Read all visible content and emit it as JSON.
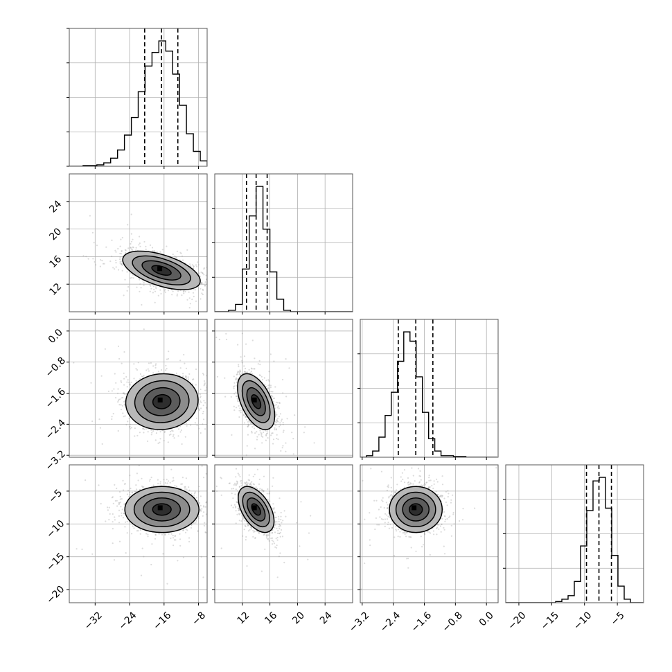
{
  "chart_data": {
    "type": "corner",
    "title": "",
    "parameters": [
      "",
      "",
      "",
      ""
    ],
    "grid": true,
    "colors": {
      "hist": "#000000",
      "samples": "#9a9a9a",
      "frame": "#555555",
      "grid": "#b0b0b0"
    },
    "axis_ranges": [
      [
        -38,
        -6
      ],
      [
        8,
        28
      ],
      [
        -3.25,
        0.3
      ],
      [
        -22,
        -1
      ]
    ],
    "ticks": [
      [
        "-32",
        "-24",
        "-16",
        "-8"
      ],
      [
        "12",
        "16",
        "20",
        "24"
      ],
      [
        "-3.2",
        "-2.4",
        "-1.6",
        "-0.8",
        "0.0"
      ],
      [
        "-20",
        "-15",
        "-10",
        "-5"
      ]
    ],
    "tick_values": [
      [
        -32,
        -24,
        -16,
        -8
      ],
      [
        12,
        16,
        20,
        24
      ],
      [
        -3.2,
        -2.4,
        -1.6,
        -0.8,
        0.0
      ],
      [
        -20,
        -15,
        -10,
        -5
      ]
    ],
    "quantiles": [
      [
        -20.5,
        -16.6,
        -12.8
      ],
      [
        12.6,
        14.0,
        15.6
      ],
      [
        -2.27,
        -1.82,
        -1.38
      ],
      [
        -9.7,
        -7.8,
        -5.9
      ]
    ],
    "histograms": [
      {
        "edges_start": -38,
        "bin_width": 1.6,
        "counts": [
          0,
          0,
          1,
          1,
          2,
          5,
          12,
          24,
          46,
          72,
          110,
          148,
          168,
          185,
          170,
          136,
          90,
          48,
          22,
          8,
          2
        ]
      },
      {
        "edges_start": 8,
        "bin_width": 1,
        "counts": [
          0,
          0,
          2,
          10,
          58,
          130,
          170,
          112,
          54,
          17,
          2,
          0,
          0,
          0,
          0,
          0,
          0,
          0,
          0,
          0
        ]
      },
      {
        "edges_start": -3.25,
        "bin_width": 0.16,
        "counts": [
          0,
          2,
          8,
          26,
          54,
          84,
          124,
          162,
          150,
          104,
          58,
          24,
          8,
          2,
          2,
          1,
          1,
          0,
          0,
          0,
          0,
          0
        ]
      },
      {
        "edges_start": -22,
        "bin_width": 0.95,
        "counts": [
          0,
          0,
          0,
          0,
          0,
          0,
          0,
          0,
          1,
          3,
          6,
          18,
          48,
          78,
          103,
          106,
          80,
          40,
          14,
          3,
          0,
          0
        ]
      }
    ],
    "pair_plots": [
      {
        "row": 1,
        "col": 0,
        "center": [
          -16.6,
          14.0
        ],
        "sigma": [
          4.5,
          1.4
        ],
        "rho": -0.55
      },
      {
        "row": 2,
        "col": 0,
        "center": [
          -16.5,
          -1.82
        ],
        "sigma": [
          4.2,
          0.36
        ],
        "rho": 0.05
      },
      {
        "row": 2,
        "col": 1,
        "center": [
          14.0,
          -1.82
        ],
        "sigma": [
          1.35,
          0.36
        ],
        "rho": -0.5
      },
      {
        "row": 3,
        "col": 0,
        "center": [
          -16.5,
          -7.8
        ],
        "sigma": [
          4.3,
          1.75
        ],
        "rho": 0.0
      },
      {
        "row": 3,
        "col": 1,
        "center": [
          14.0,
          -7.8
        ],
        "sigma": [
          1.3,
          1.75
        ],
        "rho": -0.5
      },
      {
        "row": 3,
        "col": 2,
        "center": [
          -1.82,
          -7.8
        ],
        "sigma": [
          0.34,
          1.75
        ],
        "rho": 0.0
      }
    ],
    "contour_levels_sigma": [
      0.5,
      1.0,
      1.5,
      2.0
    ]
  }
}
